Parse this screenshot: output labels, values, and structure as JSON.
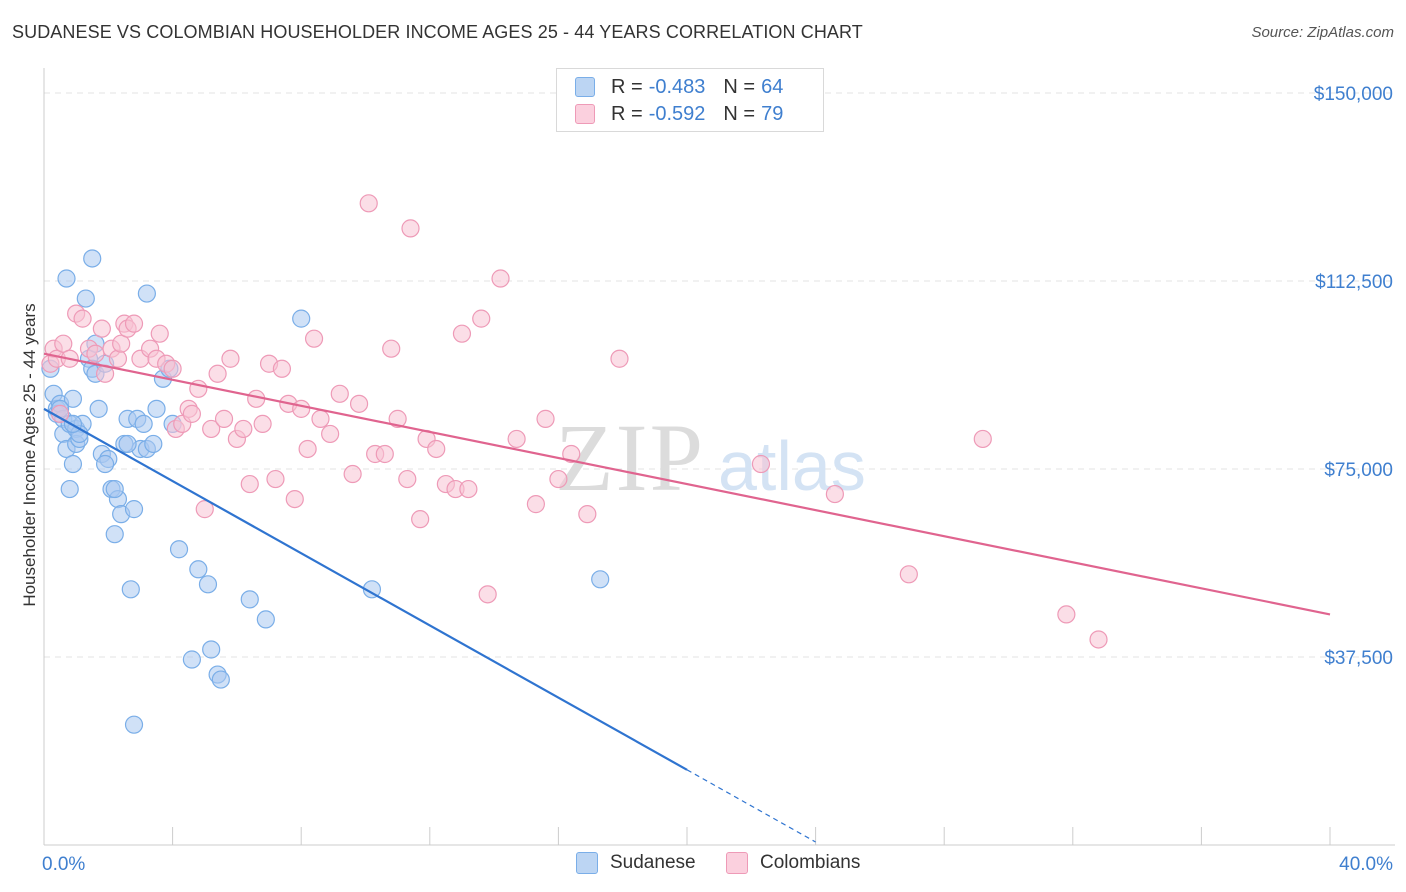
{
  "header": {
    "title": "SUDANESE VS COLOMBIAN HOUSEHOLDER INCOME AGES 25 - 44 YEARS CORRELATION CHART",
    "source": "Source: ZipAtlas.com"
  },
  "legend": {
    "rows": [
      {
        "r_label": "R = ",
        "r_value": "-0.483",
        "n_label": "N = ",
        "n_value": "64",
        "color": "#7aaee8"
      },
      {
        "r_label": "R = ",
        "r_value": "-0.592",
        "n_label": "N = ",
        "n_value": "79",
        "color": "#f4a6bf"
      }
    ]
  },
  "bottom_legend": {
    "sudanese": "Sudanese",
    "colombians": "Colombians"
  },
  "colors": {
    "sudanese_fill": "#a9c9f0",
    "sudanese_stroke": "#7aaee8",
    "sudanese_line": "#2f74d0",
    "colombian_fill": "#f8c3d4",
    "colombian_stroke": "#ee9ab7",
    "colombian_line": "#e0648f",
    "tick_text": "#3f7fcf",
    "grid": "#e3e3e3"
  },
  "chart_data": {
    "type": "scatter",
    "title": "SUDANESE VS COLOMBIAN HOUSEHOLDER INCOME AGES 25 - 44 YEARS CORRELATION CHART",
    "xlabel": "",
    "ylabel": "Householder Income Ages 25 - 44 years",
    "xlim": [
      0,
      40
    ],
    "ylim": [
      0,
      153000
    ],
    "x_tick_labels": [
      "0.0%",
      "40.0%"
    ],
    "y_ticks": [
      37500,
      75000,
      112500,
      150000
    ],
    "y_tick_labels": [
      "$37,500",
      "$75,000",
      "$112,500",
      "$150,000"
    ],
    "grid": true,
    "legend_position": "top-center",
    "watermark": "ZIPatlas",
    "series": [
      {
        "name": "Sudanese",
        "r": -0.483,
        "n": 64,
        "trend": {
          "x0": 0,
          "y0": 87000,
          "x1": 20.0,
          "y1": 15000,
          "dashed_to_x": 24.0
        },
        "points": [
          [
            0.2,
            95000
          ],
          [
            0.3,
            90000
          ],
          [
            0.4,
            87000
          ],
          [
            0.4,
            86000
          ],
          [
            0.5,
            88000
          ],
          [
            0.6,
            85000
          ],
          [
            0.6,
            82000
          ],
          [
            0.7,
            79000
          ],
          [
            0.8,
            84000
          ],
          [
            0.9,
            89000
          ],
          [
            0.9,
            76000
          ],
          [
            1.0,
            83000
          ],
          [
            1.0,
            80000
          ],
          [
            1.1,
            81000
          ],
          [
            1.2,
            84000
          ],
          [
            1.4,
            97000
          ],
          [
            1.5,
            95000
          ],
          [
            1.6,
            100000
          ],
          [
            1.6,
            94000
          ],
          [
            1.7,
            87000
          ],
          [
            1.8,
            78000
          ],
          [
            1.9,
            96000
          ],
          [
            2.0,
            77000
          ],
          [
            2.1,
            71000
          ],
          [
            2.2,
            62000
          ],
          [
            2.3,
            69000
          ],
          [
            2.4,
            66000
          ],
          [
            2.5,
            80000
          ],
          [
            2.6,
            85000
          ],
          [
            2.7,
            51000
          ],
          [
            2.8,
            67000
          ],
          [
            2.9,
            85000
          ],
          [
            3.0,
            79000
          ],
          [
            3.1,
            84000
          ],
          [
            3.2,
            79000
          ],
          [
            3.4,
            80000
          ],
          [
            3.5,
            87000
          ],
          [
            3.7,
            93000
          ],
          [
            4.0,
            84000
          ],
          [
            4.2,
            59000
          ],
          [
            4.6,
            37000
          ],
          [
            4.8,
            55000
          ],
          [
            5.1,
            52000
          ],
          [
            5.2,
            39000
          ],
          [
            5.4,
            34000
          ],
          [
            6.4,
            49000
          ],
          [
            6.9,
            45000
          ],
          [
            8.0,
            105000
          ],
          [
            10.2,
            51000
          ],
          [
            17.3,
            53000
          ],
          [
            0.7,
            113000
          ],
          [
            1.3,
            109000
          ],
          [
            1.5,
            117000
          ],
          [
            3.2,
            110000
          ],
          [
            2.2,
            71000
          ],
          [
            1.1,
            82000
          ],
          [
            0.9,
            84000
          ],
          [
            0.5,
            87000
          ],
          [
            2.6,
            80000
          ],
          [
            3.9,
            95000
          ],
          [
            2.8,
            24000
          ],
          [
            5.5,
            33000
          ],
          [
            0.8,
            71000
          ],
          [
            1.9,
            76000
          ]
        ]
      },
      {
        "name": "Colombians",
        "r": -0.592,
        "n": 79,
        "trend": {
          "x0": 0,
          "y0": 98000,
          "x1": 40.0,
          "y1": 46000
        },
        "points": [
          [
            0.2,
            96000
          ],
          [
            0.3,
            99000
          ],
          [
            0.4,
            97000
          ],
          [
            0.5,
            86000
          ],
          [
            0.6,
            100000
          ],
          [
            0.8,
            97000
          ],
          [
            1.0,
            106000
          ],
          [
            1.2,
            105000
          ],
          [
            1.4,
            99000
          ],
          [
            1.6,
            98000
          ],
          [
            1.8,
            103000
          ],
          [
            1.9,
            94000
          ],
          [
            2.1,
            99000
          ],
          [
            2.3,
            97000
          ],
          [
            2.4,
            100000
          ],
          [
            2.5,
            104000
          ],
          [
            2.6,
            103000
          ],
          [
            2.8,
            104000
          ],
          [
            3.0,
            97000
          ],
          [
            3.3,
            99000
          ],
          [
            3.5,
            97000
          ],
          [
            3.6,
            102000
          ],
          [
            3.8,
            96000
          ],
          [
            4.0,
            95000
          ],
          [
            4.1,
            83000
          ],
          [
            4.3,
            84000
          ],
          [
            4.5,
            87000
          ],
          [
            4.6,
            86000
          ],
          [
            4.8,
            91000
          ],
          [
            5.0,
            67000
          ],
          [
            5.2,
            83000
          ],
          [
            5.4,
            94000
          ],
          [
            5.6,
            85000
          ],
          [
            5.8,
            97000
          ],
          [
            6.0,
            81000
          ],
          [
            6.2,
            83000
          ],
          [
            6.4,
            72000
          ],
          [
            6.6,
            89000
          ],
          [
            6.8,
            84000
          ],
          [
            7.0,
            96000
          ],
          [
            7.2,
            73000
          ],
          [
            7.4,
            95000
          ],
          [
            7.6,
            88000
          ],
          [
            7.8,
            69000
          ],
          [
            8.0,
            87000
          ],
          [
            8.2,
            79000
          ],
          [
            8.4,
            101000
          ],
          [
            8.6,
            85000
          ],
          [
            8.9,
            82000
          ],
          [
            9.2,
            90000
          ],
          [
            9.6,
            74000
          ],
          [
            9.8,
            88000
          ],
          [
            10.1,
            128000
          ],
          [
            10.3,
            78000
          ],
          [
            10.6,
            78000
          ],
          [
            10.8,
            99000
          ],
          [
            11.0,
            85000
          ],
          [
            11.3,
            73000
          ],
          [
            11.4,
            123000
          ],
          [
            11.7,
            65000
          ],
          [
            11.9,
            81000
          ],
          [
            12.2,
            79000
          ],
          [
            12.5,
            72000
          ],
          [
            12.8,
            71000
          ],
          [
            13.0,
            102000
          ],
          [
            13.2,
            71000
          ],
          [
            13.6,
            105000
          ],
          [
            13.8,
            50000
          ],
          [
            14.2,
            113000
          ],
          [
            14.7,
            81000
          ],
          [
            15.3,
            68000
          ],
          [
            15.6,
            85000
          ],
          [
            16.0,
            73000
          ],
          [
            16.4,
            78000
          ],
          [
            16.9,
            66000
          ],
          [
            17.9,
            97000
          ],
          [
            22.3,
            76000
          ],
          [
            24.6,
            70000
          ],
          [
            26.9,
            54000
          ]
        ]
      }
    ],
    "extra_colombian_points": [
      [
        29.2,
        81000
      ],
      [
        31.8,
        46000
      ],
      [
        32.8,
        41000
      ]
    ]
  }
}
